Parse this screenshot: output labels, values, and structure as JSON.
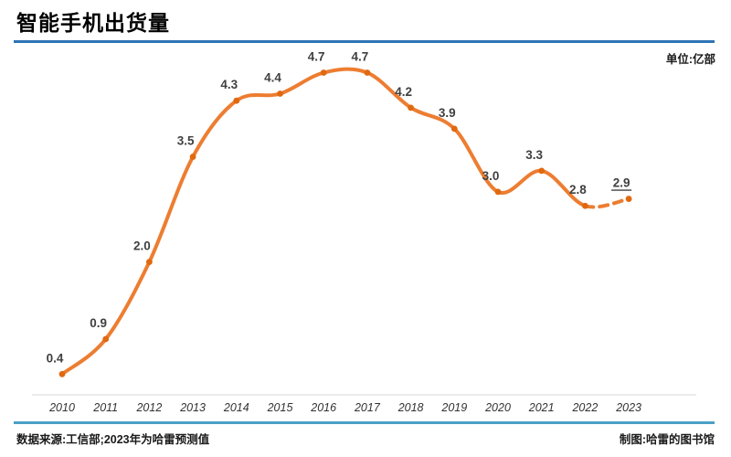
{
  "title": "智能手机出货量",
  "unit_label": "单位:亿部",
  "footer": {
    "source": "数据来源:工信部;2023年为哈雷预测值",
    "credit": "制图:哈雷的图书馆"
  },
  "colors": {
    "line": "#ED7D31",
    "marker": "#E0690F",
    "label_text": "#404040",
    "axis_line": "#EBEBEB",
    "title_rule": "#2E74B5",
    "footer_rule": "#4BA0C6"
  },
  "chart_data": {
    "type": "line",
    "title": "智能手机出货量",
    "ylabel": "亿部",
    "xlabel": "",
    "categories": [
      "2010",
      "2011",
      "2012",
      "2013",
      "2014",
      "2015",
      "2016",
      "2017",
      "2018",
      "2019",
      "2020",
      "2021",
      "2022",
      "2023"
    ],
    "series": [
      {
        "name": "智能手机出货量",
        "values": [
          0.4,
          0.9,
          2.0,
          3.5,
          4.3,
          4.4,
          4.7,
          4.7,
          4.2,
          3.9,
          3.0,
          3.3,
          2.8,
          2.9
        ]
      }
    ],
    "point_labels": [
      "0.4",
      "0.9",
      "2.0",
      "3.5",
      "4.3",
      "4.4",
      "4.7",
      "4.7",
      "4.2",
      "3.9",
      "3.0",
      "3.3",
      "2.8",
      "2.9"
    ],
    "forecast_point": {
      "category": "2023",
      "label": "2.9",
      "style": "dashed-segment, underlined-label"
    },
    "ylim": [
      0,
      5
    ],
    "grid": false,
    "legend_position": "none",
    "line_style": "smooth",
    "markers": "dot"
  }
}
